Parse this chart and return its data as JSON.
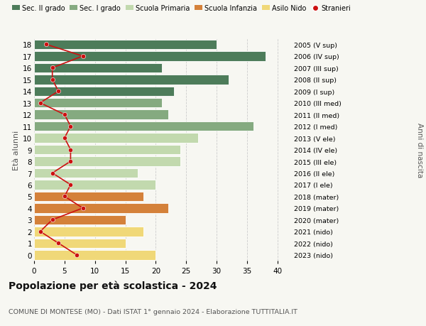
{
  "ages": [
    18,
    17,
    16,
    15,
    14,
    13,
    12,
    11,
    10,
    9,
    8,
    7,
    6,
    5,
    4,
    3,
    2,
    1,
    0
  ],
  "bar_values": [
    30,
    38,
    21,
    32,
    23,
    21,
    22,
    36,
    27,
    24,
    24,
    17,
    20,
    18,
    22,
    15,
    18,
    15,
    20
  ],
  "stranieri": [
    2,
    8,
    3,
    3,
    4,
    1,
    5,
    6,
    5,
    6,
    6,
    3,
    6,
    5,
    8,
    3,
    1,
    4,
    7
  ],
  "bar_colors": [
    "#4d7c5a",
    "#4d7c5a",
    "#4d7c5a",
    "#4d7c5a",
    "#4d7c5a",
    "#85aa80",
    "#85aa80",
    "#85aa80",
    "#c2d9ae",
    "#c2d9ae",
    "#c2d9ae",
    "#c2d9ae",
    "#c2d9ae",
    "#d4813a",
    "#d4813a",
    "#d4813a",
    "#f0d878",
    "#f0d878",
    "#f0d878"
  ],
  "right_labels": [
    "2005 (V sup)",
    "2006 (IV sup)",
    "2007 (III sup)",
    "2008 (II sup)",
    "2009 (I sup)",
    "2010 (III med)",
    "2011 (II med)",
    "2012 (I med)",
    "2013 (V ele)",
    "2014 (IV ele)",
    "2015 (III ele)",
    "2016 (II ele)",
    "2017 (I ele)",
    "2018 (mater)",
    "2019 (mater)",
    "2020 (mater)",
    "2021 (nido)",
    "2022 (nido)",
    "2023 (nido)"
  ],
  "legend_labels": [
    "Sec. II grado",
    "Sec. I grado",
    "Scuola Primaria",
    "Scuola Infanzia",
    "Asilo Nido",
    "Stranieri"
  ],
  "legend_colors": [
    "#4d7c5a",
    "#85aa80",
    "#c2d9ae",
    "#d4813a",
    "#f0d878",
    "#cc1111"
  ],
  "title": "Popolazione per età scolastica - 2024",
  "subtitle": "COMUNE DI MONTESE (MO) - Dati ISTAT 1° gennaio 2024 - Elaborazione TUTTITALIA.IT",
  "ylabel_left": "Età alunni",
  "ylabel_right": "Anni di nascita",
  "xlim": [
    0,
    42
  ],
  "ylim_min": -0.5,
  "ylim_max": 18.5,
  "background_color": "#f7f7f2",
  "stranieri_color": "#cc1111",
  "grid_color": "#cccccc",
  "bar_height": 0.82
}
